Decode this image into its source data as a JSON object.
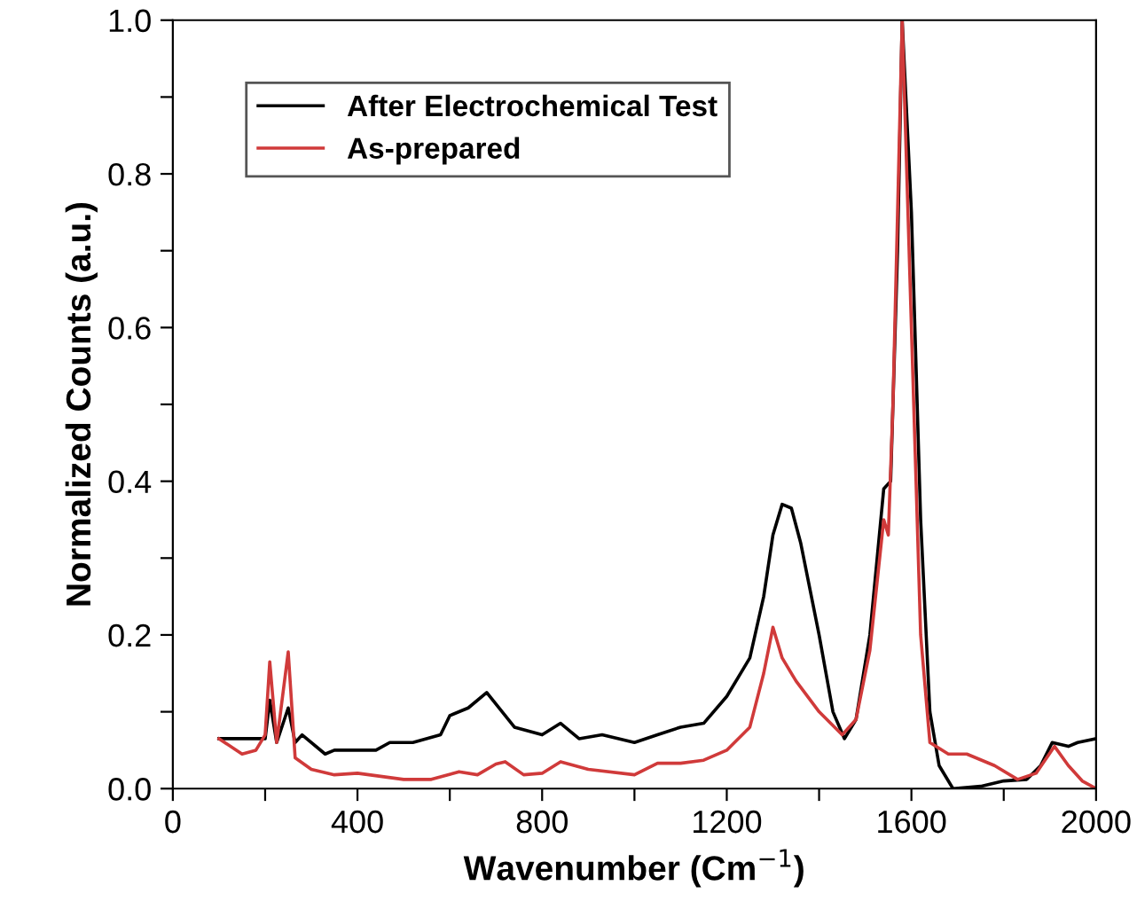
{
  "chart_data": {
    "type": "line",
    "xlabel": "Wavenumber (Cm$^{−1}$)",
    "ylabel": "Normalized Counts (a.u.)",
    "xlim": [
      0,
      2000
    ],
    "ylim": [
      0,
      1.0
    ],
    "xticks": [
      0,
      {
        "value": 200,
        "label": null
      },
      400,
      {
        "value": 600,
        "label": null
      },
      800,
      {
        "value": 1000,
        "label": null
      },
      1200,
      {
        "value": 1400,
        "label": null
      },
      1600,
      {
        "value": 1800,
        "label": null
      },
      2000
    ],
    "yticks": [
      {
        "value": 0,
        "label": "0.0"
      },
      {
        "value": 0.1,
        "label": null
      },
      0.2,
      {
        "value": 0.3,
        "label": null
      },
      0.4,
      {
        "value": 0.5,
        "label": null
      },
      0.6,
      {
        "value": 0.7,
        "label": null
      },
      0.8,
      {
        "value": 0.9,
        "label": null
      },
      {
        "value": 1.0,
        "label": "1.0"
      }
    ],
    "grid": false,
    "legend": "top left",
    "marker": "none",
    "line_style": "solid",
    "series": [
      {
        "name": "After Electrochemical Test",
        "color": "#000000",
        "x": [
          100,
          200,
          210,
          225,
          250,
          265,
          280,
          330,
          350,
          400,
          440,
          470,
          520,
          580,
          600,
          640,
          680,
          720,
          740,
          800,
          840,
          880,
          930,
          1000,
          1050,
          1100,
          1150,
          1200,
          1250,
          1280,
          1300,
          1320,
          1340,
          1360,
          1400,
          1430,
          1455,
          1480,
          1510,
          1540,
          1555,
          1570,
          1580,
          1600,
          1620,
          1640,
          1660,
          1690,
          1750,
          1800,
          1850,
          1880,
          1905,
          1940,
          1960,
          2000
        ],
        "values": [
          0.065,
          0.065,
          0.115,
          0.06,
          0.105,
          0.06,
          0.07,
          0.045,
          0.05,
          0.05,
          0.05,
          0.06,
          0.06,
          0.07,
          0.095,
          0.105,
          0.125,
          0.095,
          0.08,
          0.07,
          0.085,
          0.065,
          0.07,
          0.06,
          0.07,
          0.08,
          0.085,
          0.12,
          0.17,
          0.25,
          0.33,
          0.37,
          0.365,
          0.32,
          0.2,
          0.1,
          0.065,
          0.09,
          0.2,
          0.39,
          0.4,
          0.7,
          1.0,
          0.75,
          0.35,
          0.1,
          0.03,
          0.0,
          0.003,
          0.01,
          0.012,
          0.03,
          0.06,
          0.055,
          0.06,
          0.065
        ]
      },
      {
        "name": "As-prepared",
        "color": "#d03a3a",
        "x": [
          100,
          150,
          180,
          200,
          210,
          225,
          250,
          265,
          300,
          350,
          400,
          500,
          560,
          620,
          660,
          700,
          720,
          760,
          800,
          840,
          900,
          1000,
          1050,
          1100,
          1150,
          1200,
          1250,
          1280,
          1300,
          1320,
          1350,
          1400,
          1450,
          1480,
          1510,
          1540,
          1550,
          1560,
          1580,
          1600,
          1620,
          1640,
          1680,
          1720,
          1780,
          1830,
          1870,
          1910,
          1940,
          1970,
          2000
        ],
        "values": [
          0.065,
          0.045,
          0.05,
          0.07,
          0.165,
          0.06,
          0.178,
          0.04,
          0.025,
          0.018,
          0.02,
          0.012,
          0.012,
          0.022,
          0.018,
          0.032,
          0.035,
          0.018,
          0.02,
          0.035,
          0.025,
          0.018,
          0.033,
          0.033,
          0.037,
          0.05,
          0.08,
          0.15,
          0.21,
          0.17,
          0.14,
          0.1,
          0.07,
          0.09,
          0.18,
          0.35,
          0.33,
          0.5,
          1.0,
          0.6,
          0.2,
          0.06,
          0.045,
          0.045,
          0.03,
          0.012,
          0.02,
          0.055,
          0.03,
          0.01,
          0.0
        ]
      }
    ]
  }
}
